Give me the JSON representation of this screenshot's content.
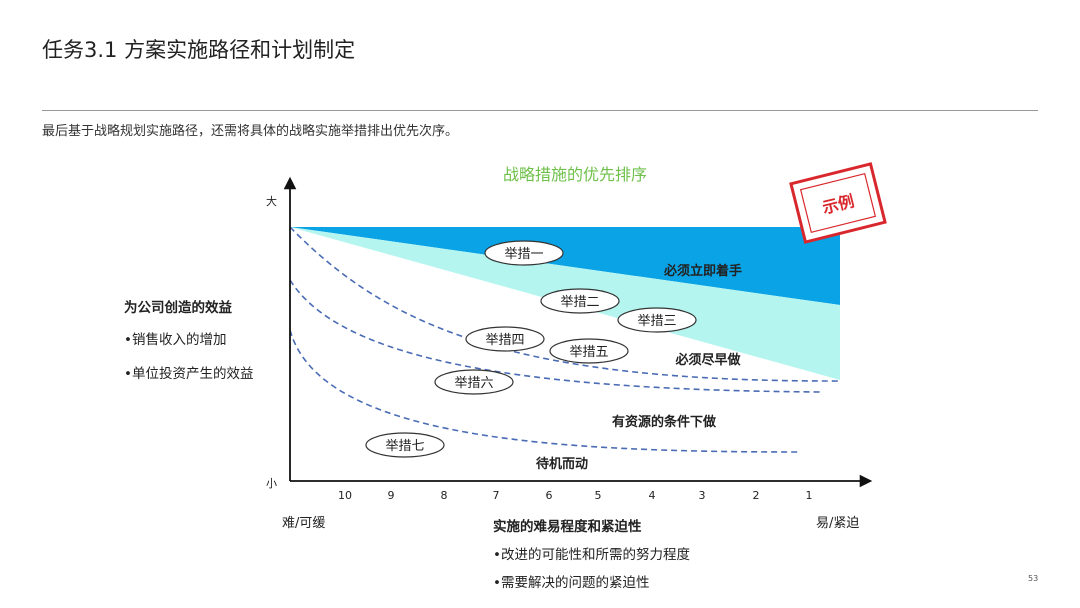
{
  "title": "任务3.1 方案实施路径和计划制定",
  "intro": "最后基于战略规划实施路径，还需将具体的战略实施举措排出优先次序。",
  "diagram": {
    "title": "战略措施的优先排序",
    "stamp": "示例",
    "y_axis": {
      "top": "大",
      "bottom": "小",
      "title": "为公司创造的效益",
      "bullets": [
        "•销售收入的增加",
        "•单位投资产生的效益"
      ]
    },
    "x_axis": {
      "ticks": [
        "10",
        "9",
        "8",
        "7",
        "6",
        "5",
        "4",
        "3",
        "2",
        "1"
      ],
      "left_end": "难/可缓",
      "right_end": "易/紧迫",
      "title": "实施的难易程度和紧迫性",
      "bullets": [
        "•改进的可能性和所需的努力程度",
        "•需要解决的问题的紧迫性"
      ]
    },
    "zones": [
      "必须立即着手",
      "必须尽早做",
      "有资源的条件下做",
      "待机而动"
    ],
    "measures": [
      "举措一",
      "举措二",
      "举措三",
      "举措四",
      "举措五",
      "举措六",
      "举措七"
    ],
    "colors": {
      "urgent_zone": "#0aa3e6",
      "early_zone": "#b5f5f0",
      "title": "#6fc04a",
      "stamp": "#d8282d",
      "dashed": "#4a6cb5"
    }
  },
  "page_number": "53"
}
